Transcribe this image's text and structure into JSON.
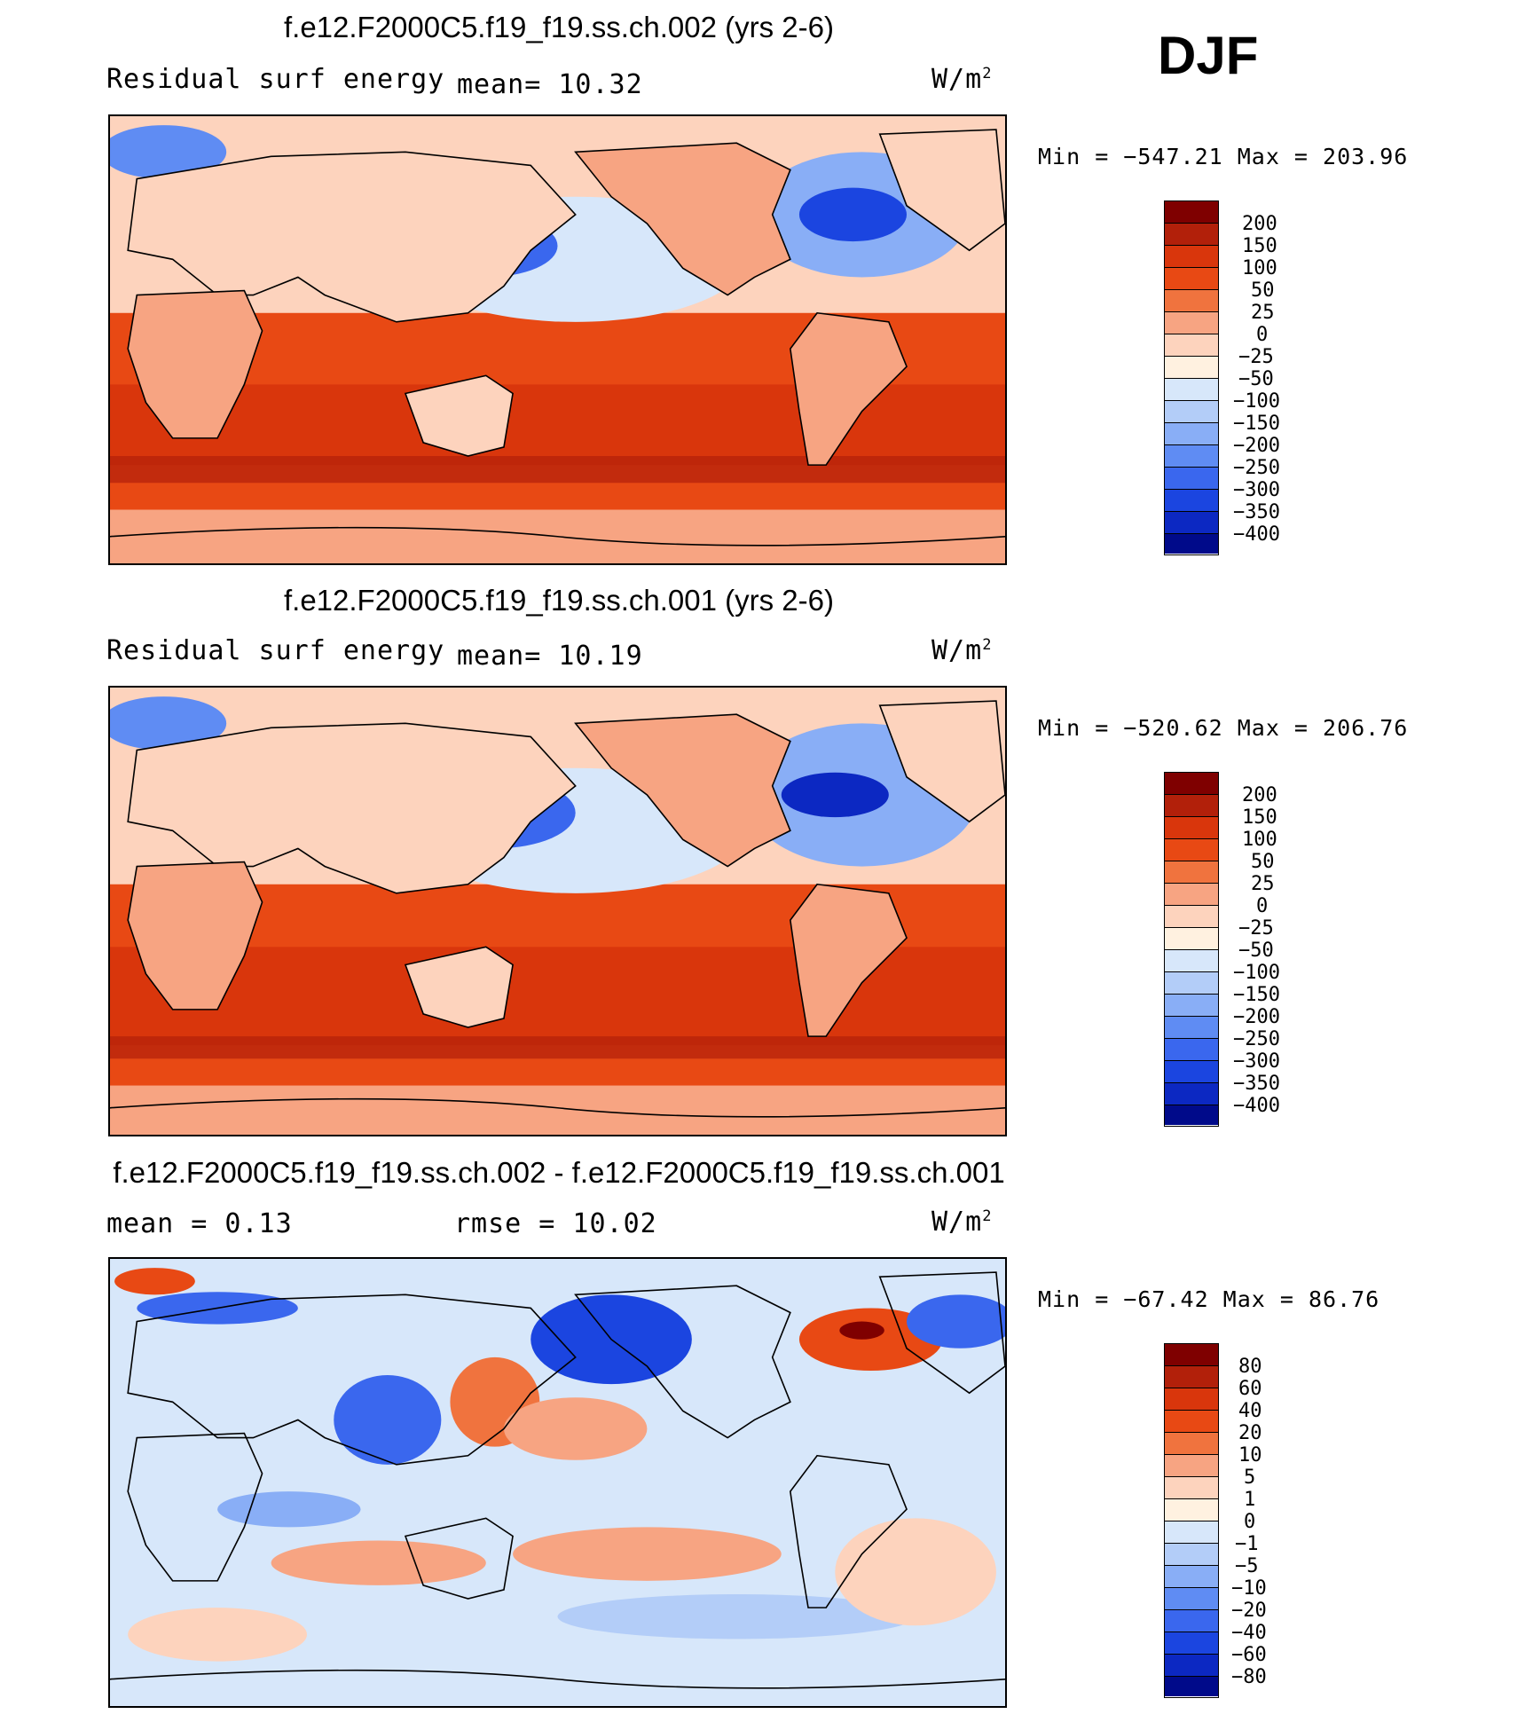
{
  "season": "DJF",
  "panels": [
    {
      "title": "f.e12.F2000C5.f19_f19.ss.ch.002 (yrs 2-6)",
      "left_label": "Residual surf energy",
      "mid_label": "mean=  10.32",
      "units_base": "W/m",
      "units_sup": "2",
      "minmax": "Min = −547.21 Max = 203.96",
      "colorbar": {
        "colors": [
          "#7f0000",
          "#b2200a",
          "#d9360c",
          "#e84914",
          "#f0733e",
          "#f7a482",
          "#fdd3bd",
          "#fff1e0",
          "#d7e7fa",
          "#b3cdf8",
          "#89aef6",
          "#5f8cf3",
          "#3a67ee",
          "#1b45e0",
          "#0c28c2",
          "#000a8a"
        ],
        "labels": [
          "200",
          "150",
          "100",
          "50",
          "25",
          "0",
          "−25",
          "−50",
          "−100",
          "−150",
          "−200",
          "−250",
          "−300",
          "−350",
          "−400"
        ]
      }
    },
    {
      "title": "f.e12.F2000C5.f19_f19.ss.ch.001 (yrs 2-6)",
      "left_label": "Residual surf energy",
      "mid_label": "mean=  10.19",
      "units_base": "W/m",
      "units_sup": "2",
      "minmax": "Min = −520.62 Max = 206.76",
      "colorbar": {
        "colors": [
          "#7f0000",
          "#b2200a",
          "#d9360c",
          "#e84914",
          "#f0733e",
          "#f7a482",
          "#fdd3bd",
          "#fff1e0",
          "#d7e7fa",
          "#b3cdf8",
          "#89aef6",
          "#5f8cf3",
          "#3a67ee",
          "#1b45e0",
          "#0c28c2",
          "#000a8a"
        ],
        "labels": [
          "200",
          "150",
          "100",
          "50",
          "25",
          "0",
          "−25",
          "−50",
          "−100",
          "−150",
          "−200",
          "−250",
          "−300",
          "−350",
          "−400"
        ]
      }
    },
    {
      "title": "f.e12.F2000C5.f19_f19.ss.ch.002 - f.e12.F2000C5.f19_f19.ss.ch.001",
      "left_label": "mean =   0.13",
      "mid_label": "rmse =  10.02",
      "units_base": "W/m",
      "units_sup": "2",
      "minmax": "Min = −67.42 Max =  86.76",
      "colorbar": {
        "colors": [
          "#7f0000",
          "#b2200a",
          "#d9360c",
          "#e84914",
          "#f0733e",
          "#f7a482",
          "#fdd3bd",
          "#fff1e0",
          "#d7e7fa",
          "#b3cdf8",
          "#89aef6",
          "#5f8cf3",
          "#3a67ee",
          "#1b45e0",
          "#0c28c2",
          "#000a8a"
        ],
        "labels": [
          "80",
          "60",
          "40",
          "20",
          "10",
          "5",
          "1",
          "0",
          "−1",
          "−5",
          "−10",
          "−20",
          "−40",
          "−60",
          "−80"
        ]
      }
    }
  ]
}
